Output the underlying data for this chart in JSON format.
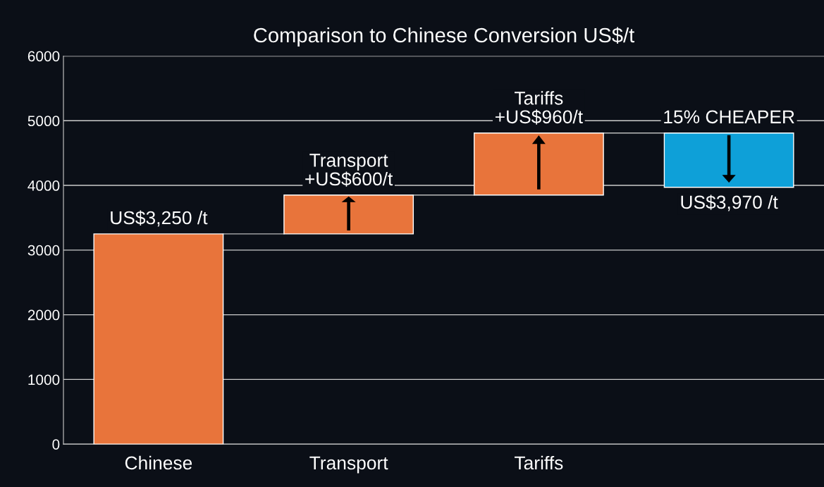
{
  "chart_data": {
    "type": "bar",
    "title": "Comparison to Chinese Conversion US$/t",
    "categories": [
      "Chinese",
      "Transport",
      "Tariffs",
      null
    ],
    "values": [
      3250,
      600,
      960,
      840
    ],
    "base": [
      0,
      3250,
      3850,
      3970
    ],
    "colors": [
      "#e8743b",
      "#e8743b",
      "#e8743b",
      "#0ea0d8"
    ],
    "ylim": [
      0,
      6000
    ],
    "yticks": [
      0,
      1000,
      2000,
      3000,
      4000,
      5000,
      6000
    ],
    "grid": "y",
    "annotations": [
      {
        "text": "US$3,250 /t",
        "x": "Chinese",
        "y": 3250
      },
      {
        "text": "Transport\n+US$600/t",
        "x": "Transport",
        "y": 3850
      },
      {
        "text": "Tariffs\n+US$960/t",
        "x": "Tariffs",
        "y": 4810
      },
      {
        "text": "15% CHEAPER",
        "y": 4810
      },
      {
        "text": "US$3,970 /t",
        "y": 3970
      }
    ]
  }
}
